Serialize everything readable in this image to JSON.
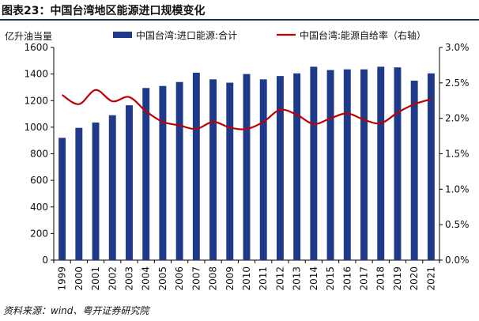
{
  "header": {
    "title": "图表23：中国台湾地区能源进口规模变化"
  },
  "footer": {
    "source": "资料来源：wind、粤开证券研究院"
  },
  "colors": {
    "bar": "#1f3a8a",
    "line": "#c00000",
    "rule": "#1f2d5a"
  },
  "chart_data": {
    "type": "bar",
    "categories": [
      "1999",
      "2000",
      "2001",
      "2002",
      "2003",
      "2004",
      "2005",
      "2006",
      "2007",
      "2008",
      "2009",
      "2010",
      "2011",
      "2012",
      "2013",
      "2014",
      "2015",
      "2016",
      "2017",
      "2018",
      "2019",
      "2020",
      "2021"
    ],
    "series": [
      {
        "name": "中国台湾:进口能源:合计",
        "type": "bar",
        "axis": "left",
        "values": [
          920,
          995,
          1035,
          1090,
          1165,
          1295,
          1310,
          1340,
          1410,
          1360,
          1335,
          1400,
          1360,
          1385,
          1405,
          1455,
          1430,
          1435,
          1435,
          1455,
          1450,
          1350,
          1405
        ]
      },
      {
        "name": "中国台湾:能源自给率（右轴）",
        "type": "line",
        "axis": "right",
        "values": [
          2.33,
          2.2,
          2.4,
          2.24,
          2.3,
          2.1,
          1.95,
          1.9,
          1.85,
          1.95,
          1.87,
          1.85,
          1.95,
          2.12,
          2.05,
          1.92,
          2.0,
          2.07,
          1.98,
          1.93,
          2.08,
          2.2,
          2.27
        ]
      }
    ],
    "left_axis": {
      "unit_label": "亿升油当量",
      "ylim": [
        0,
        1600
      ],
      "ticks": [
        "0",
        "200",
        "400",
        "600",
        "800",
        "1000",
        "1200",
        "1400",
        "1600"
      ]
    },
    "right_axis": {
      "ylim": [
        0,
        3.0
      ],
      "ticks": [
        "0.0%",
        "0.5%",
        "1.0%",
        "1.5%",
        "2.0%",
        "2.5%",
        "3.0%"
      ]
    },
    "legend": {
      "position": "top",
      "bar_label": "中国台湾:进口能源:合计",
      "line_label": "中国台湾:能源自给率（右轴）"
    }
  }
}
